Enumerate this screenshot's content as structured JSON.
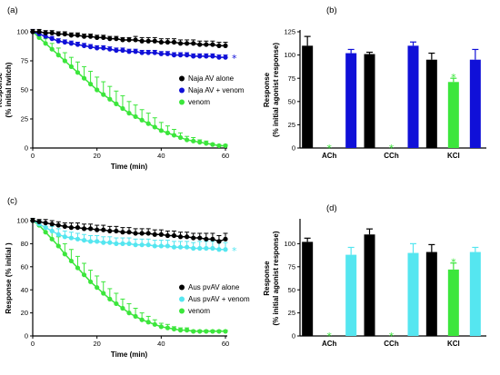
{
  "colors": {
    "black": "#000000",
    "blue": "#1010d8",
    "green": "#3ce63c",
    "cyan": "#55e6f0"
  },
  "chart_data": [
    {
      "panel": "(a)",
      "type": "line",
      "xlabel": "Time (min)",
      "ylabel": [
        "Response",
        "(% initial twitch)"
      ],
      "xlim": [
        0,
        60
      ],
      "ylim": [
        0,
        100
      ],
      "xticks": [
        0,
        20,
        40,
        60
      ],
      "yticks": [
        0,
        25,
        50,
        75,
        100
      ],
      "x": [
        0,
        2,
        4,
        6,
        8,
        10,
        12,
        14,
        16,
        18,
        20,
        22,
        24,
        26,
        28,
        30,
        32,
        34,
        36,
        38,
        40,
        42,
        44,
        46,
        48,
        50,
        52,
        54,
        56,
        58,
        60
      ],
      "series": [
        {
          "name": "Naja AV alone",
          "color": "#000000",
          "values": [
            100,
            100,
            99,
            99,
            98,
            98,
            97,
            97,
            96,
            96,
            95,
            95,
            94,
            94,
            93,
            93,
            93,
            92,
            92,
            92,
            91,
            91,
            91,
            90,
            90,
            90,
            89,
            89,
            89,
            88,
            88
          ],
          "err": [
            2,
            2,
            2,
            2,
            2,
            2,
            2,
            2,
            2,
            2,
            2,
            2,
            2,
            2,
            2,
            2,
            3,
            3,
            3,
            3,
            3,
            3,
            3,
            3,
            3,
            3,
            3,
            3,
            3,
            3,
            3
          ]
        },
        {
          "name": "Naja AV + venom",
          "color": "#1010d8",
          "values": [
            100,
            98,
            96,
            94,
            92,
            91,
            90,
            89,
            88,
            87,
            86,
            86,
            85,
            84,
            84,
            83,
            83,
            82,
            82,
            82,
            81,
            81,
            80,
            80,
            80,
            79,
            79,
            79,
            79,
            78,
            78
          ],
          "err": [
            2,
            2,
            2,
            2,
            2,
            2,
            2,
            2,
            2,
            2,
            2,
            2,
            2,
            2,
            2,
            2,
            2,
            2,
            2,
            2,
            2,
            2,
            2,
            2,
            2,
            2,
            2,
            2,
            2,
            2,
            2
          ]
        },
        {
          "name": "venom",
          "color": "#3ce63c",
          "values": [
            100,
            95,
            90,
            85,
            80,
            75,
            70,
            65,
            60,
            55,
            50,
            46,
            42,
            38,
            34,
            30,
            27,
            24,
            21,
            18,
            15,
            13,
            11,
            9,
            7,
            6,
            5,
            4,
            3,
            2,
            2
          ],
          "err": [
            0,
            3,
            4,
            5,
            6,
            7,
            8,
            9,
            10,
            11,
            11,
            11,
            11,
            11,
            11,
            10,
            10,
            9,
            9,
            8,
            7,
            6,
            5,
            4,
            3,
            3,
            2,
            2,
            1,
            1,
            1
          ]
        }
      ],
      "annotations": [
        {
          "text": "*",
          "series": "Naja AV + venom",
          "x": 60,
          "color": "#1010d8"
        }
      ]
    },
    {
      "panel": "(b)",
      "type": "bar",
      "ylabel": [
        "Response",
        "(% initial agonist response)"
      ],
      "ylim": [
        0,
        125
      ],
      "yticks": [
        0,
        25,
        50,
        75,
        100,
        125
      ],
      "categories": [
        "ACh",
        "CCh",
        "KCl"
      ],
      "series": [
        {
          "name": "",
          "color": "#000000",
          "values": [
            110,
            101,
            95
          ],
          "err": [
            10,
            2,
            7
          ]
        },
        {
          "name": "",
          "color": "#3ce63c",
          "values": [
            0,
            0,
            71
          ],
          "err": [
            0,
            0,
            4
          ]
        },
        {
          "name": "",
          "color": "#1010d8",
          "values": [
            102,
            110,
            95
          ],
          "err": [
            4,
            4,
            11
          ]
        }
      ],
      "significance": [
        {
          "category": "ACh",
          "series": 1,
          "text": "*"
        },
        {
          "category": "CCh",
          "series": 1,
          "text": "*"
        },
        {
          "category": "KCl",
          "series": 1,
          "text": "*"
        }
      ]
    },
    {
      "panel": "(c)",
      "type": "line",
      "xlabel": "Time (min)",
      "ylabel": [
        "Response (% initial )"
      ],
      "xlim": [
        0,
        60
      ],
      "ylim": [
        0,
        100
      ],
      "xticks": [
        0,
        20,
        40,
        60
      ],
      "yticks": [
        0,
        20,
        40,
        60,
        80,
        100
      ],
      "x": [
        0,
        2,
        4,
        6,
        8,
        10,
        12,
        14,
        16,
        18,
        20,
        22,
        24,
        26,
        28,
        30,
        32,
        34,
        36,
        38,
        40,
        42,
        44,
        46,
        48,
        50,
        52,
        54,
        56,
        58,
        60
      ],
      "series": [
        {
          "name": "Aus pvAV alone",
          "color": "#000000",
          "values": [
            100,
            99,
            98,
            97,
            96,
            95,
            94,
            94,
            93,
            93,
            92,
            92,
            91,
            91,
            90,
            90,
            89,
            89,
            89,
            88,
            88,
            87,
            87,
            86,
            86,
            85,
            85,
            84,
            84,
            82,
            84
          ],
          "err": [
            2,
            2,
            3,
            3,
            3,
            3,
            4,
            4,
            4,
            4,
            4,
            4,
            4,
            4,
            4,
            4,
            4,
            4,
            4,
            4,
            4,
            4,
            4,
            4,
            4,
            4,
            4,
            5,
            5,
            5,
            5
          ]
        },
        {
          "name": "Aus pvAV + venom",
          "color": "#55e6f0",
          "values": [
            100,
            97,
            94,
            91,
            88,
            86,
            85,
            84,
            83,
            82,
            82,
            81,
            81,
            80,
            80,
            80,
            79,
            79,
            79,
            78,
            78,
            78,
            77,
            77,
            77,
            76,
            76,
            76,
            76,
            75,
            75
          ],
          "err": [
            2,
            3,
            4,
            4,
            5,
            5,
            5,
            5,
            5,
            5,
            5,
            5,
            5,
            5,
            5,
            5,
            5,
            5,
            5,
            5,
            5,
            5,
            5,
            5,
            5,
            5,
            6,
            6,
            6,
            6,
            6
          ]
        },
        {
          "name": "venom",
          "color": "#3ce63c",
          "values": [
            100,
            96,
            90,
            84,
            78,
            71,
            65,
            59,
            53,
            47,
            42,
            37,
            32,
            28,
            24,
            20,
            17,
            14,
            12,
            10,
            8,
            7,
            6,
            5,
            5,
            4,
            4,
            4,
            4,
            4,
            4
          ],
          "err": [
            0,
            3,
            5,
            7,
            8,
            9,
            10,
            10,
            10,
            10,
            10,
            10,
            9,
            9,
            8,
            8,
            7,
            6,
            5,
            4,
            3,
            3,
            2,
            2,
            2,
            1,
            1,
            1,
            1,
            1,
            1
          ]
        }
      ],
      "annotations": [
        {
          "text": "*",
          "series": "Aus pvAV + venom",
          "x": 60,
          "color": "#55e6f0"
        }
      ]
    },
    {
      "panel": "(d)",
      "type": "bar",
      "ylabel": [
        "Response",
        "(% initial agonist response)"
      ],
      "ylim": [
        0,
        125
      ],
      "yticks": [
        0,
        25,
        50,
        75,
        100
      ],
      "categories": [
        "ACh",
        "CCh",
        "KCl"
      ],
      "series": [
        {
          "name": "",
          "color": "#000000",
          "values": [
            102,
            110,
            91
          ],
          "err": [
            4,
            6,
            8
          ]
        },
        {
          "name": "",
          "color": "#3ce63c",
          "values": [
            0,
            0,
            72
          ],
          "err": [
            0,
            0,
            7
          ]
        },
        {
          "name": "",
          "color": "#55e6f0",
          "values": [
            88,
            90,
            91
          ],
          "err": [
            8,
            10,
            5
          ]
        }
      ],
      "significance": [
        {
          "category": "ACh",
          "series": 1,
          "text": "*"
        },
        {
          "category": "CCh",
          "series": 1,
          "text": "*"
        },
        {
          "category": "KCl",
          "series": 1,
          "text": "*"
        }
      ]
    }
  ]
}
